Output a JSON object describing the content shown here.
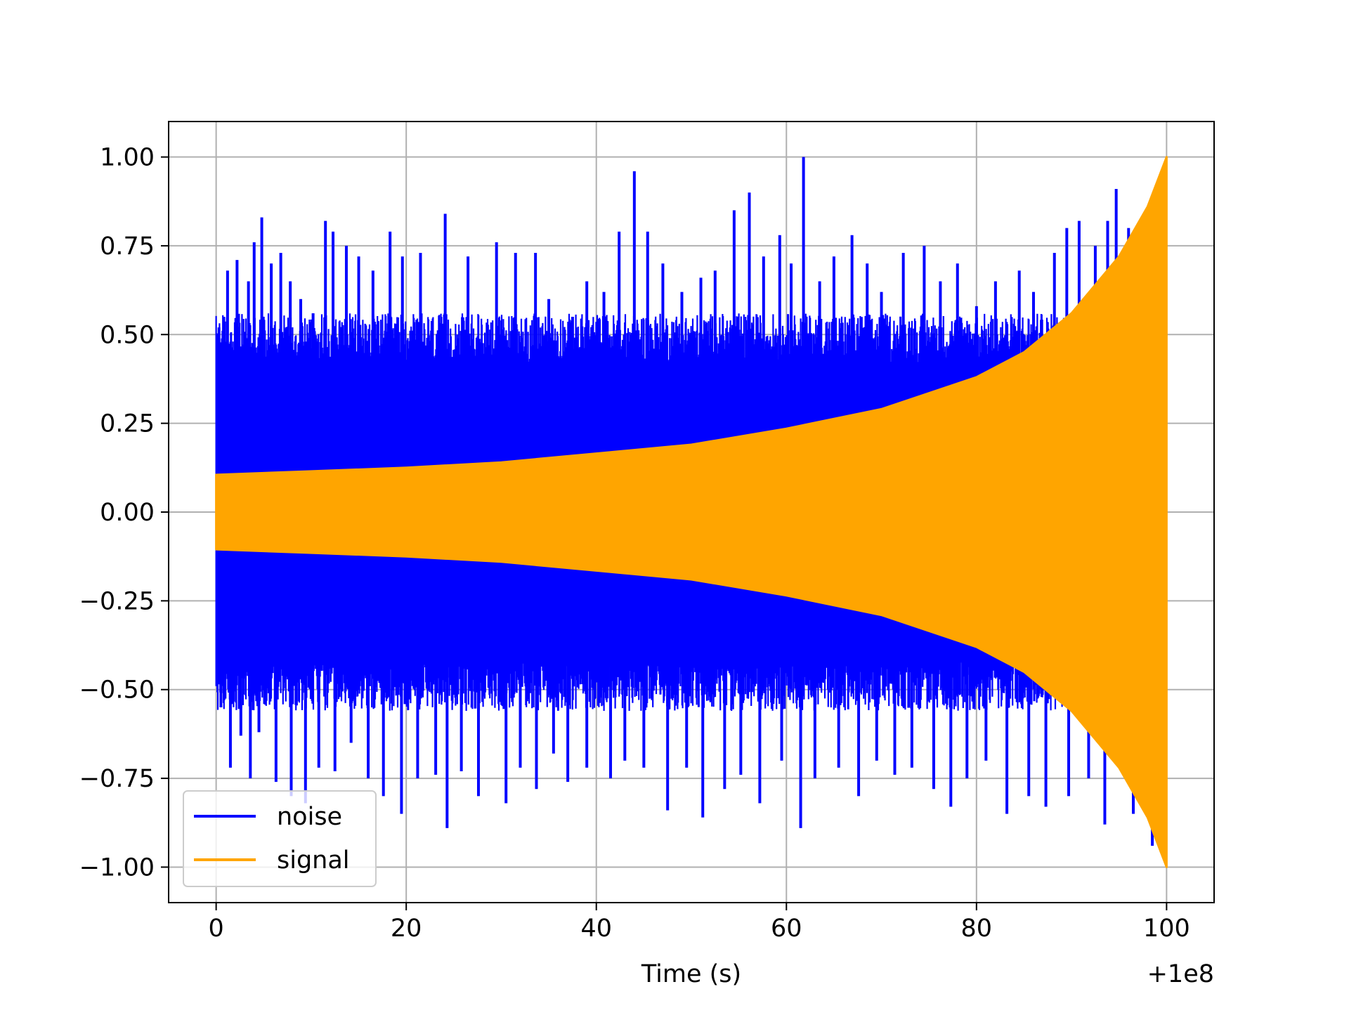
{
  "chart_data": {
    "type": "line",
    "title": "",
    "xlabel": "Time (s)",
    "ylabel": "",
    "x_offset_label": "+1e8",
    "xlim": [
      -5,
      105
    ],
    "ylim": [
      -1.1,
      1.1
    ],
    "x_ticks": [
      0,
      20,
      40,
      60,
      80,
      100
    ],
    "x_tick_labels": [
      "0",
      "20",
      "40",
      "60",
      "80",
      "100"
    ],
    "y_ticks": [
      1.0,
      0.75,
      0.5,
      0.25,
      0.0,
      -0.25,
      -0.5,
      -0.75,
      -1.0
    ],
    "y_tick_labels": [
      "1.00",
      "0.75",
      "0.50",
      "0.25",
      "0.00",
      "−0.25",
      "−0.50",
      "−0.75",
      "−1.00"
    ],
    "grid": true,
    "legend": {
      "placement": "lower-left",
      "entries": [
        "noise",
        "signal"
      ]
    },
    "series": [
      {
        "name": "noise",
        "color": "#0000ff",
        "x_range": [
          0,
          100
        ],
        "envelope": "stationary random noise, typical peak about ±0.55, maximum spikes about ±1.0",
        "spikes": [
          {
            "x": 0.3,
            "y": 0.52
          },
          {
            "x": 0.8,
            "y": 0.55
          },
          {
            "x": 1.2,
            "y": 0.68
          },
          {
            "x": 2.2,
            "y": 0.71
          },
          {
            "x": 3.4,
            "y": 0.65
          },
          {
            "x": 4.0,
            "y": 0.76
          },
          {
            "x": 4.8,
            "y": 0.83
          },
          {
            "x": 5.8,
            "y": 0.7
          },
          {
            "x": 6.8,
            "y": 0.73
          },
          {
            "x": 7.8,
            "y": 0.65
          },
          {
            "x": 8.9,
            "y": 0.6
          },
          {
            "x": 10.2,
            "y": 0.56
          },
          {
            "x": 11.5,
            "y": 0.82
          },
          {
            "x": 12.3,
            "y": 0.79
          },
          {
            "x": 13.7,
            "y": 0.75
          },
          {
            "x": 15.0,
            "y": 0.72
          },
          {
            "x": 16.5,
            "y": 0.68
          },
          {
            "x": 18.3,
            "y": 0.79
          },
          {
            "x": 19.6,
            "y": 0.72
          },
          {
            "x": 21.5,
            "y": 0.73
          },
          {
            "x": 24.1,
            "y": 0.84
          },
          {
            "x": 26.5,
            "y": 0.72
          },
          {
            "x": 29.5,
            "y": 0.76
          },
          {
            "x": 31.5,
            "y": 0.73
          },
          {
            "x": 33.6,
            "y": 0.73
          },
          {
            "x": 35.0,
            "y": 0.6
          },
          {
            "x": 37.5,
            "y": 0.55
          },
          {
            "x": 39.0,
            "y": 0.65
          },
          {
            "x": 40.8,
            "y": 0.62
          },
          {
            "x": 42.4,
            "y": 0.79
          },
          {
            "x": 44.0,
            "y": 0.96
          },
          {
            "x": 45.4,
            "y": 0.79
          },
          {
            "x": 47.0,
            "y": 0.7
          },
          {
            "x": 49.0,
            "y": 0.62
          },
          {
            "x": 51.0,
            "y": 0.66
          },
          {
            "x": 52.5,
            "y": 0.68
          },
          {
            "x": 54.5,
            "y": 0.85
          },
          {
            "x": 56.1,
            "y": 0.9
          },
          {
            "x": 57.6,
            "y": 0.72
          },
          {
            "x": 59.3,
            "y": 0.78
          },
          {
            "x": 60.5,
            "y": 0.7
          },
          {
            "x": 61.8,
            "y": 1.0
          },
          {
            "x": 63.5,
            "y": 0.65
          },
          {
            "x": 65.0,
            "y": 0.72
          },
          {
            "x": 66.9,
            "y": 0.78
          },
          {
            "x": 68.5,
            "y": 0.7
          },
          {
            "x": 70.0,
            "y": 0.62
          },
          {
            "x": 72.3,
            "y": 0.73
          },
          {
            "x": 74.5,
            "y": 0.75
          },
          {
            "x": 76.2,
            "y": 0.65
          },
          {
            "x": 78.0,
            "y": 0.7
          },
          {
            "x": 80.0,
            "y": 0.58
          },
          {
            "x": 82.0,
            "y": 0.65
          },
          {
            "x": 84.5,
            "y": 0.68
          },
          {
            "x": 86.0,
            "y": 0.62
          },
          {
            "x": 88.2,
            "y": 0.73
          },
          {
            "x": 89.5,
            "y": 0.8
          },
          {
            "x": 90.8,
            "y": 0.82
          },
          {
            "x": 92.5,
            "y": 0.75
          },
          {
            "x": 93.8,
            "y": 0.82
          },
          {
            "x": 94.7,
            "y": 0.91
          },
          {
            "x": 96.0,
            "y": 0.8
          },
          {
            "x": 0.5,
            "y": -0.55
          },
          {
            "x": 1.5,
            "y": -0.72
          },
          {
            "x": 2.6,
            "y": -0.63
          },
          {
            "x": 3.6,
            "y": -0.75
          },
          {
            "x": 4.5,
            "y": -0.62
          },
          {
            "x": 6.3,
            "y": -0.76
          },
          {
            "x": 7.9,
            "y": -0.8
          },
          {
            "x": 9.4,
            "y": -0.82
          },
          {
            "x": 10.8,
            "y": -0.72
          },
          {
            "x": 12.5,
            "y": -0.73
          },
          {
            "x": 14.2,
            "y": -0.65
          },
          {
            "x": 16.0,
            "y": -0.75
          },
          {
            "x": 17.6,
            "y": -0.8
          },
          {
            "x": 19.5,
            "y": -0.85
          },
          {
            "x": 21.2,
            "y": -0.75
          },
          {
            "x": 23.1,
            "y": -0.74
          },
          {
            "x": 24.3,
            "y": -0.89
          },
          {
            "x": 25.8,
            "y": -0.73
          },
          {
            "x": 27.6,
            "y": -0.8
          },
          {
            "x": 30.5,
            "y": -0.82
          },
          {
            "x": 32.0,
            "y": -0.72
          },
          {
            "x": 33.7,
            "y": -0.78
          },
          {
            "x": 35.5,
            "y": -0.68
          },
          {
            "x": 37.0,
            "y": -0.76
          },
          {
            "x": 39.0,
            "y": -0.72
          },
          {
            "x": 41.5,
            "y": -0.75
          },
          {
            "x": 43.0,
            "y": -0.7
          },
          {
            "x": 45.0,
            "y": -0.72
          },
          {
            "x": 47.5,
            "y": -0.84
          },
          {
            "x": 49.5,
            "y": -0.72
          },
          {
            "x": 51.2,
            "y": -0.86
          },
          {
            "x": 53.5,
            "y": -0.78
          },
          {
            "x": 55.2,
            "y": -0.74
          },
          {
            "x": 57.2,
            "y": -0.82
          },
          {
            "x": 59.5,
            "y": -0.7
          },
          {
            "x": 61.5,
            "y": -0.89
          },
          {
            "x": 63.0,
            "y": -0.75
          },
          {
            "x": 65.5,
            "y": -0.72
          },
          {
            "x": 67.6,
            "y": -0.8
          },
          {
            "x": 69.5,
            "y": -0.7
          },
          {
            "x": 71.4,
            "y": -0.74
          },
          {
            "x": 73.2,
            "y": -0.72
          },
          {
            "x": 75.5,
            "y": -0.78
          },
          {
            "x": 77.3,
            "y": -0.83
          },
          {
            "x": 79.0,
            "y": -0.75
          },
          {
            "x": 81.0,
            "y": -0.7
          },
          {
            "x": 83.2,
            "y": -0.85
          },
          {
            "x": 85.5,
            "y": -0.8
          },
          {
            "x": 87.3,
            "y": -0.83
          },
          {
            "x": 89.7,
            "y": -0.8
          },
          {
            "x": 91.8,
            "y": -0.75
          },
          {
            "x": 93.5,
            "y": -0.88
          },
          {
            "x": 96.5,
            "y": -0.85
          },
          {
            "x": 98.5,
            "y": -0.94
          }
        ]
      },
      {
        "name": "signal",
        "color": "#ffa500",
        "x_range": [
          0,
          100
        ],
        "envelope_points": [
          {
            "x": 0,
            "y": 0.105
          },
          {
            "x": 10,
            "y": 0.115
          },
          {
            "x": 20,
            "y": 0.125
          },
          {
            "x": 30,
            "y": 0.14
          },
          {
            "x": 40,
            "y": 0.165
          },
          {
            "x": 50,
            "y": 0.19
          },
          {
            "x": 60,
            "y": 0.235
          },
          {
            "x": 70,
            "y": 0.29
          },
          {
            "x": 80,
            "y": 0.38
          },
          {
            "x": 85,
            "y": 0.45
          },
          {
            "x": 90,
            "y": 0.56
          },
          {
            "x": 95,
            "y": 0.72
          },
          {
            "x": 98,
            "y": 0.86
          },
          {
            "x": 100,
            "y": 1.0
          }
        ]
      }
    ]
  }
}
